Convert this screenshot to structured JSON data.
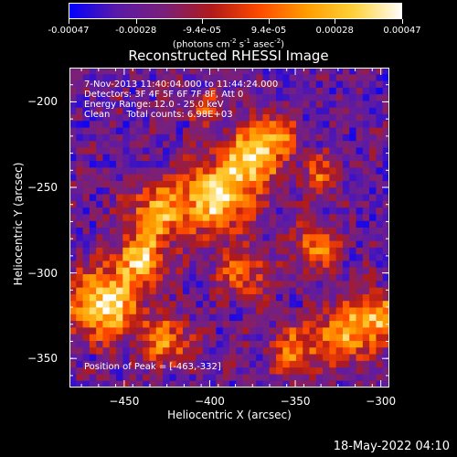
{
  "colorbar": {
    "tick_labels": [
      "-0.00047",
      "-0.00028",
      "-9.4e-05",
      "9.4e-05",
      "0.00028",
      "0.00047"
    ],
    "tick_values": [
      -0.00047,
      -0.00028,
      -9.4e-05,
      9.4e-05,
      0.00028,
      0.00047
    ],
    "range": [
      -0.00047,
      0.00047
    ],
    "units_text": "(photons cm",
    "units_exp1": "-2",
    "units_mid": " s",
    "units_exp2": "-1",
    "units_mid2": " asec",
    "units_exp3": "-2",
    "units_end": ")",
    "colors": [
      "#0000ff",
      "#5a1aa8",
      "#7a207a",
      "#b01a1a",
      "#ff4a00",
      "#ff9d00",
      "#ffd23c",
      "#ffffff"
    ]
  },
  "chart_data": {
    "type": "heatmap",
    "title": "Reconstructed RHESSI Image",
    "xlabel": "Heliocentric X (arcsec)",
    "ylabel": "Heliocentric Y (arcsec)",
    "xlim": [
      -482,
      -295
    ],
    "ylim": [
      -367,
      -180
    ],
    "x_ticks": [
      -450,
      -400,
      -350,
      -300
    ],
    "y_ticks": [
      -200,
      -250,
      -300,
      -350
    ],
    "x_tick_labels": [
      "−450",
      "−400",
      "−350",
      "−300"
    ],
    "y_tick_labels": [
      "−200",
      "−250",
      "−300",
      "−350"
    ],
    "grid_shape": [
      48,
      48
    ],
    "hot_spots": [
      {
        "x": -395,
        "y": -255,
        "amp": 0.95,
        "sigma": 14
      },
      {
        "x": -375,
        "y": -232,
        "amp": 0.85,
        "sigma": 11
      },
      {
        "x": -360,
        "y": -218,
        "amp": 0.6,
        "sigma": 8
      },
      {
        "x": -430,
        "y": -265,
        "amp": 0.7,
        "sigma": 12
      },
      {
        "x": -462,
        "y": -318,
        "amp": 0.95,
        "sigma": 14
      },
      {
        "x": -440,
        "y": -292,
        "amp": 0.75,
        "sigma": 10
      },
      {
        "x": -425,
        "y": -340,
        "amp": 0.6,
        "sigma": 10
      },
      {
        "x": -338,
        "y": -285,
        "amp": 0.55,
        "sigma": 9
      },
      {
        "x": -320,
        "y": -335,
        "amp": 0.7,
        "sigma": 12
      },
      {
        "x": -350,
        "y": -345,
        "amp": 0.55,
        "sigma": 10
      },
      {
        "x": -300,
        "y": -325,
        "amp": 0.65,
        "sigma": 9
      },
      {
        "x": -402,
        "y": -205,
        "amp": 0.35,
        "sigma": 8
      },
      {
        "x": -335,
        "y": -243,
        "amp": 0.45,
        "sigma": 8
      },
      {
        "x": -380,
        "y": -300,
        "amp": 0.5,
        "sigma": 10
      }
    ],
    "annotations": [
      "7-Nov-2013 11:40:04.000 to 11:44:24.000",
      "Detectors: 3F 4F 5F 6F 7F 8F, Att 0",
      "Energy Range: 12.0 - 25.0 keV",
      "Clean",
      "Total counts: 6.98E+03"
    ],
    "peak_label": "Position of Peak = [-463,-332]",
    "peak_position": [
      -463,
      -332
    ]
  },
  "footer": {
    "timestamp": "18-May-2022 04:10"
  }
}
